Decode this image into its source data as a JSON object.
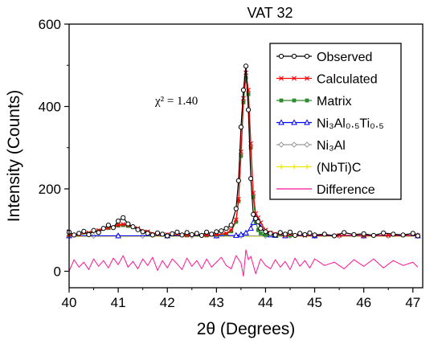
{
  "chart_data": {
    "type": "line",
    "title": "VAT 32",
    "xlabel": "2θ (Degrees)",
    "ylabel": "Intensity (Counts)",
    "xlim": [
      40,
      47.2
    ],
    "ylim": [
      -40,
      600
    ],
    "xticks": [
      40,
      41,
      42,
      43,
      44,
      45,
      46,
      47
    ],
    "xtick_labels": [
      "40",
      "41",
      "42",
      "43",
      "44",
      "45",
      "46",
      "47"
    ],
    "yticks": [
      0,
      200,
      400,
      600
    ],
    "ytick_labels": [
      "0",
      "200",
      "400",
      "600"
    ],
    "grid": false,
    "legend_position": "top-right",
    "annotation": {
      "text": "χ² = 1.40",
      "x": 41.75,
      "y": 405
    },
    "series": [
      {
        "name": "Observed",
        "color": "#000000",
        "marker": "open-circle",
        "x": [
          40.0,
          40.1,
          40.2,
          40.3,
          40.4,
          40.5,
          40.6,
          40.7,
          40.8,
          40.9,
          41.0,
          41.1,
          41.2,
          41.3,
          41.4,
          41.5,
          41.6,
          41.7,
          41.8,
          41.9,
          42.0,
          42.1,
          42.2,
          42.3,
          42.4,
          42.5,
          42.6,
          42.7,
          42.8,
          42.9,
          43.0,
          43.1,
          43.2,
          43.3,
          43.4,
          43.45,
          43.5,
          43.55,
          43.6,
          43.65,
          43.7,
          43.75,
          43.8,
          43.85,
          43.9,
          44.0,
          44.1,
          44.2,
          44.3,
          44.4,
          44.5,
          44.6,
          44.7,
          44.8,
          44.9,
          45.0,
          45.2,
          45.4,
          45.6,
          45.8,
          46.0,
          46.2,
          46.4,
          46.6,
          46.8,
          47.0,
          47.1
        ],
        "y": [
          95,
          88,
          92,
          97,
          89,
          99,
          94,
          104,
          112,
          106,
          122,
          130,
          115,
          108,
          101,
          96,
          92,
          88,
          93,
          90,
          86,
          91,
          95,
          88,
          94,
          89,
          92,
          87,
          95,
          90,
          96,
          98,
          104,
          112,
          152,
          220,
          350,
          440,
          498,
          392,
          225,
          138,
          128,
          120,
          104,
          96,
          92,
          88,
          94,
          90,
          95,
          87,
          92,
          89,
          93,
          88,
          90,
          86,
          94,
          89,
          91,
          87,
          93,
          90,
          88,
          92,
          86
        ]
      },
      {
        "name": "Calculated",
        "color": "#ff0000",
        "marker": "x",
        "x": [
          40.0,
          40.2,
          40.4,
          40.6,
          40.8,
          41.0,
          41.1,
          41.2,
          41.4,
          41.6,
          41.8,
          42.0,
          42.4,
          42.8,
          43.0,
          43.2,
          43.3,
          43.4,
          43.45,
          43.5,
          43.55,
          43.6,
          43.65,
          43.7,
          43.75,
          43.8,
          43.85,
          43.9,
          44.0,
          44.1,
          44.2,
          44.4,
          44.8,
          45.5,
          46.0,
          46.5,
          47.1
        ],
        "y": [
          89,
          90,
          93,
          99,
          106,
          112,
          114,
          112,
          104,
          96,
          91,
          89,
          88,
          88,
          89,
          92,
          100,
          125,
          175,
          290,
          420,
          482,
          440,
          310,
          190,
          140,
          130,
          118,
          100,
          93,
          90,
          88,
          87,
          87,
          87,
          87,
          87
        ]
      },
      {
        "name": "Matrix",
        "color": "#2e8b2e",
        "marker": "filled-square",
        "x": [
          40.0,
          40.2,
          40.4,
          40.6,
          40.8,
          41.0,
          41.1,
          41.2,
          41.4,
          41.6,
          41.8,
          42.0,
          42.4,
          42.8,
          43.0,
          43.2,
          43.3,
          43.4,
          43.45,
          43.5,
          43.55,
          43.6,
          43.65,
          43.7,
          43.75,
          43.8,
          43.85,
          43.9,
          44.0,
          44.2,
          44.5,
          45.0,
          46.0,
          47.1
        ],
        "y": [
          88,
          89,
          92,
          98,
          105,
          111,
          112,
          110,
          102,
          95,
          90,
          88,
          87,
          87,
          88,
          90,
          97,
          120,
          170,
          280,
          410,
          470,
          430,
          300,
          180,
          120,
          100,
          92,
          88,
          87,
          87,
          87,
          87,
          87
        ]
      },
      {
        "name": "Ni₃Al₀.₅Ti₀.₅",
        "color": "#0000ff",
        "marker": "open-triangle",
        "x": [
          40.0,
          41.0,
          42.0,
          43.0,
          43.4,
          43.5,
          43.6,
          43.7,
          43.75,
          43.8,
          43.85,
          43.9,
          44.0,
          44.1,
          44.2,
          44.4,
          45.0,
          46.0,
          47.1
        ],
        "y": [
          86,
          86,
          86,
          86,
          87,
          89,
          93,
          104,
          118,
          132,
          122,
          106,
          92,
          88,
          87,
          86,
          86,
          86,
          86
        ]
      },
      {
        "name": "Ni₃Al",
        "color": "#999999",
        "marker": "open-diamond",
        "x": [
          40.0,
          40.5,
          41.0,
          41.5,
          42.0,
          42.5,
          43.0,
          43.5,
          44.0,
          44.5,
          45.0,
          45.5,
          46.0,
          46.5,
          47.1
        ],
        "y": [
          86,
          86,
          86,
          86,
          86,
          86,
          86,
          86,
          86,
          86,
          86,
          86,
          86,
          86,
          86
        ]
      },
      {
        "name": "(NbTi)C",
        "color": "#e8e800",
        "marker": "star",
        "x": [
          40.0,
          40.5,
          41.0,
          41.5,
          42.0,
          42.5,
          43.0,
          43.5,
          44.0,
          44.5,
          45.0,
          45.5,
          46.0,
          46.5,
          47.1
        ],
        "y": [
          85,
          85,
          85,
          85,
          85,
          85,
          85,
          85,
          85,
          85,
          85,
          85,
          85,
          85,
          85
        ]
      },
      {
        "name": "Difference",
        "color": "#ff1493",
        "marker": "none",
        "x": [
          40.0,
          40.1,
          40.2,
          40.3,
          40.4,
          40.5,
          40.6,
          40.7,
          40.8,
          40.9,
          41.0,
          41.1,
          41.2,
          41.3,
          41.4,
          41.5,
          41.6,
          41.7,
          41.8,
          41.9,
          42.0,
          42.1,
          42.2,
          42.3,
          42.4,
          42.5,
          42.6,
          42.7,
          42.8,
          42.9,
          43.0,
          43.1,
          43.2,
          43.3,
          43.4,
          43.5,
          43.55,
          43.6,
          43.65,
          43.7,
          43.8,
          43.9,
          44.0,
          44.1,
          44.2,
          44.3,
          44.4,
          44.5,
          44.6,
          44.7,
          44.8,
          44.9,
          45.0,
          45.2,
          45.4,
          45.6,
          45.8,
          46.0,
          46.2,
          46.4,
          46.6,
          46.8,
          47.0,
          47.1
        ],
        "y": [
          0,
          28,
          10,
          22,
          4,
          30,
          12,
          26,
          8,
          32,
          16,
          38,
          10,
          24,
          6,
          30,
          14,
          34,
          2,
          26,
          8,
          30,
          18,
          4,
          32,
          12,
          26,
          6,
          30,
          10,
          22,
          34,
          14,
          6,
          38,
          20,
          -12,
          52,
          28,
          36,
          -6,
          30,
          14,
          6,
          28,
          10,
          24,
          4,
          32,
          12,
          26,
          8,
          30,
          14,
          22,
          6,
          28,
          12,
          30,
          8,
          26,
          14,
          22,
          10
        ]
      }
    ]
  }
}
